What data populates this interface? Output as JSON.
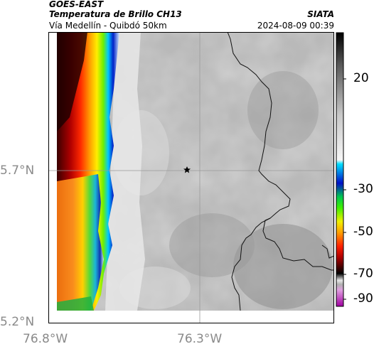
{
  "header": {
    "satellite": "GOES-EAST",
    "product": "Temperatura de Brillo CH13",
    "route": "Vía Medellín - Quibdó 50km",
    "source": "SIATA",
    "timestamp": "2024-08-09 00:39"
  },
  "map": {
    "lat_labels": [
      "5.7°N",
      "5.2°N"
    ],
    "lon_labels": [
      "76.8°W",
      "76.3°W"
    ],
    "marker_icon": "star-icon"
  },
  "colorbar": {
    "labels": [
      "20",
      "-30",
      "-50",
      "-70",
      "-90"
    ]
  },
  "colors": {
    "frame": "#000000",
    "gridline": "#9a9a9a",
    "tick_label": "#8a8a8a"
  }
}
